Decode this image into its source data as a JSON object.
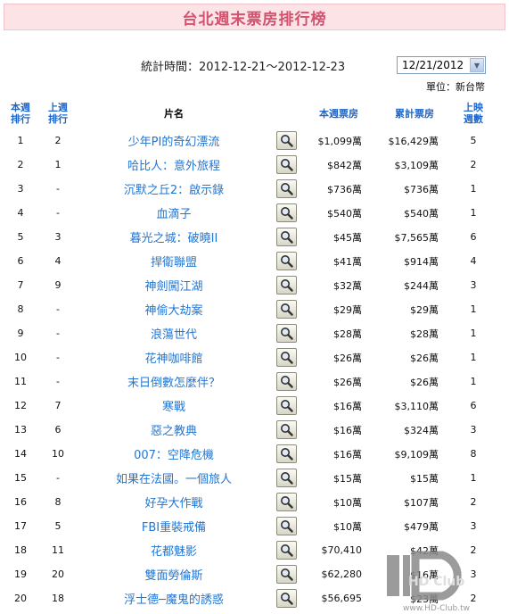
{
  "page": {
    "title": "台北週末票房排行榜"
  },
  "filter": {
    "period_label": "統計時間：2012-12-21～2012-12-23",
    "selected_date": "12/21/2012",
    "unit_label": "單位：新台幣"
  },
  "columns": {
    "rank": "本週排行",
    "last_rank": "上週排行",
    "title": "片名",
    "weekend_gross": "本週票房",
    "total_gross": "累計票房",
    "weeks": "上映週數"
  },
  "rows": [
    {
      "rank": "1",
      "last": "2",
      "title": "少年PI的奇幻漂流",
      "weekend": "$1,099萬",
      "total": "$16,429萬",
      "weeks": "5"
    },
    {
      "rank": "2",
      "last": "1",
      "title": "哈比人：意外旅程",
      "weekend": "$842萬",
      "total": "$3,109萬",
      "weeks": "2"
    },
    {
      "rank": "3",
      "last": "-",
      "title": "沉默之丘2：啟示錄",
      "weekend": "$736萬",
      "total": "$736萬",
      "weeks": "1"
    },
    {
      "rank": "4",
      "last": "-",
      "title": "血滴子",
      "weekend": "$540萬",
      "total": "$540萬",
      "weeks": "1"
    },
    {
      "rank": "5",
      "last": "3",
      "title": "暮光之城：破曉II",
      "weekend": "$45萬",
      "total": "$7,565萬",
      "weeks": "6"
    },
    {
      "rank": "6",
      "last": "4",
      "title": "捍衛聯盟",
      "weekend": "$41萬",
      "total": "$914萬",
      "weeks": "4"
    },
    {
      "rank": "7",
      "last": "9",
      "title": "神劍闖江湖",
      "weekend": "$32萬",
      "total": "$244萬",
      "weeks": "3"
    },
    {
      "rank": "8",
      "last": "-",
      "title": "神偷大劫案",
      "weekend": "$29萬",
      "total": "$29萬",
      "weeks": "1"
    },
    {
      "rank": "9",
      "last": "-",
      "title": "浪蕩世代",
      "weekend": "$28萬",
      "total": "$28萬",
      "weeks": "1"
    },
    {
      "rank": "10",
      "last": "-",
      "title": "花神咖啡館",
      "weekend": "$26萬",
      "total": "$26萬",
      "weeks": "1"
    },
    {
      "rank": "11",
      "last": "-",
      "title": "末日倒數怎麼伴？",
      "weekend": "$26萬",
      "total": "$26萬",
      "weeks": "1"
    },
    {
      "rank": "12",
      "last": "7",
      "title": "寒戰",
      "weekend": "$16萬",
      "total": "$3,110萬",
      "weeks": "6"
    },
    {
      "rank": "13",
      "last": "6",
      "title": "惡之教典",
      "weekend": "$16萬",
      "total": "$324萬",
      "weeks": "3"
    },
    {
      "rank": "14",
      "last": "10",
      "title": "007：空降危機",
      "weekend": "$16萬",
      "total": "$9,109萬",
      "weeks": "8"
    },
    {
      "rank": "15",
      "last": "-",
      "title": "如果在法國。一個旅人",
      "weekend": "$15萬",
      "total": "$15萬",
      "weeks": "1"
    },
    {
      "rank": "16",
      "last": "8",
      "title": "好孕大作戰",
      "weekend": "$10萬",
      "total": "$107萬",
      "weeks": "2"
    },
    {
      "rank": "17",
      "last": "5",
      "title": "FBI重裝戒備",
      "weekend": "$10萬",
      "total": "$479萬",
      "weeks": "3"
    },
    {
      "rank": "18",
      "last": "11",
      "title": "花都魅影",
      "weekend": "$70,410",
      "total": "$42萬",
      "weeks": "2"
    },
    {
      "rank": "19",
      "last": "20",
      "title": "雙面勞倫斯",
      "weekend": "$62,280",
      "total": "$16萬",
      "weeks": "3"
    },
    {
      "rank": "20",
      "last": "18",
      "title": "浮士德─魔鬼的誘惑",
      "weekend": "$56,695",
      "total": "$23萬",
      "weeks": "2"
    }
  ],
  "icons": {
    "row_action": "magnifier-icon",
    "select_arrow": "chevron-down-icon"
  },
  "colors": {
    "title_bg": "#fbe3e6",
    "title_text": "#d2526f",
    "header_text": "#1e66c9",
    "link": "#2276d2"
  },
  "watermark": {
    "brand": "HD Club",
    "url": "www.HD-Club.tw"
  }
}
